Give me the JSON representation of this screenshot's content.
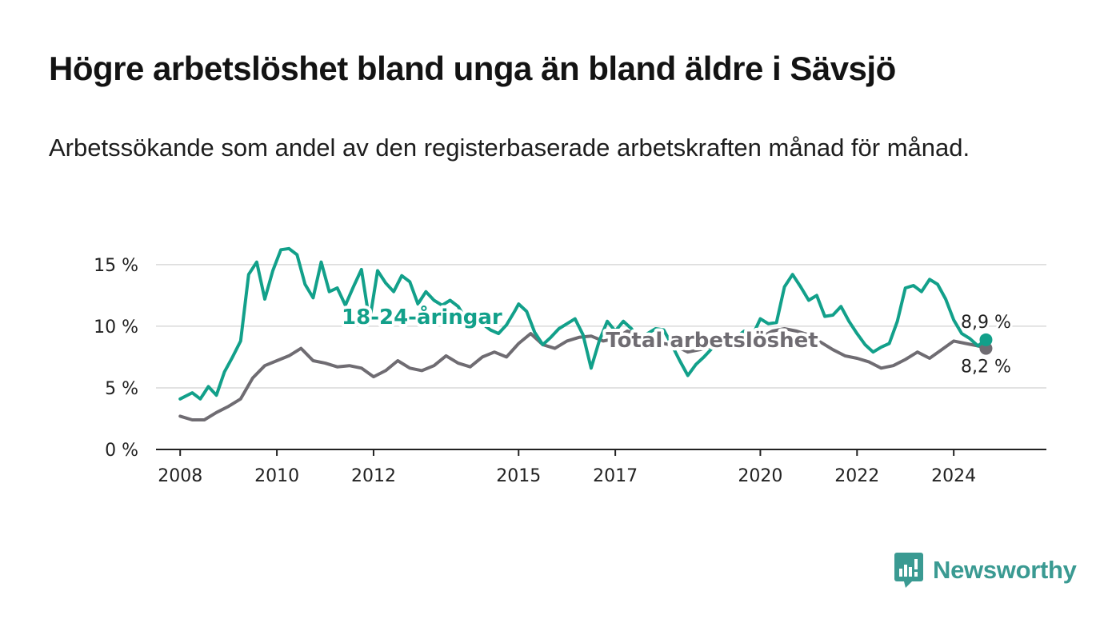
{
  "title": "Högre arbetslöshet bland unga än bland äldre i Sävsjö",
  "subtitle": "Arbetssökande som andel av den registerbaserade arbetskraften månad för månad.",
  "brand": {
    "name": "Newsworthy",
    "icon": "newsworthy-logo-icon",
    "color": "#3a9a92"
  },
  "chart_data": {
    "type": "line",
    "x_ticks": [
      "2008",
      "2010",
      "2012",
      "2015",
      "2017",
      "2020",
      "2022",
      "2024"
    ],
    "y_ticks": [
      "0 %",
      "5 %",
      "10 %",
      "15 %"
    ],
    "ylim": [
      0,
      17
    ],
    "xlim": [
      "2007-07",
      "2025-12"
    ],
    "grid": true,
    "legend": "direct labels on lines",
    "series": [
      {
        "name": "18-24-åringar",
        "color": "#12a08a",
        "end_label": "8,9 %",
        "label_position": "2013",
        "points": [
          [
            "2008-01",
            4.1
          ],
          [
            "2008-04",
            4.6
          ],
          [
            "2008-06",
            4.1
          ],
          [
            "2008-08",
            5.1
          ],
          [
            "2008-10",
            4.4
          ],
          [
            "2008-12",
            6.3
          ],
          [
            "2009-02",
            7.5
          ],
          [
            "2009-04",
            8.8
          ],
          [
            "2009-06",
            14.2
          ],
          [
            "2009-08",
            15.2
          ],
          [
            "2009-10",
            12.2
          ],
          [
            "2009-12",
            14.5
          ],
          [
            "2010-02",
            16.2
          ],
          [
            "2010-04",
            16.3
          ],
          [
            "2010-06",
            15.8
          ],
          [
            "2010-08",
            13.4
          ],
          [
            "2010-10",
            12.3
          ],
          [
            "2010-12",
            15.2
          ],
          [
            "2011-02",
            12.8
          ],
          [
            "2011-04",
            13.1
          ],
          [
            "2011-06",
            11.7
          ],
          [
            "2011-08",
            13.2
          ],
          [
            "2011-10",
            14.6
          ],
          [
            "2011-12",
            10.4
          ],
          [
            "2012-02",
            14.5
          ],
          [
            "2012-04",
            13.5
          ],
          [
            "2012-06",
            12.8
          ],
          [
            "2012-08",
            14.1
          ],
          [
            "2012-10",
            13.6
          ],
          [
            "2012-12",
            11.8
          ],
          [
            "2013-02",
            12.8
          ],
          [
            "2013-04",
            12.1
          ],
          [
            "2013-06",
            11.7
          ],
          [
            "2013-08",
            12.1
          ],
          [
            "2013-10",
            11.6
          ],
          [
            "2013-12",
            10.5
          ],
          [
            "2014-02",
            10.7
          ],
          [
            "2014-04",
            10.2
          ],
          [
            "2014-06",
            9.7
          ],
          [
            "2014-08",
            9.4
          ],
          [
            "2014-10",
            10.1
          ],
          [
            "2014-12",
            11.2
          ],
          [
            "2015-01",
            11.8
          ],
          [
            "2015-03",
            11.2
          ],
          [
            "2015-05",
            9.5
          ],
          [
            "2015-07",
            8.5
          ],
          [
            "2015-09",
            9.1
          ],
          [
            "2015-11",
            9.8
          ],
          [
            "2016-01",
            10.2
          ],
          [
            "2016-03",
            10.6
          ],
          [
            "2016-05",
            9.3
          ],
          [
            "2016-07",
            6.6
          ],
          [
            "2016-09",
            8.8
          ],
          [
            "2016-11",
            10.4
          ],
          [
            "2017-01",
            9.6
          ],
          [
            "2017-03",
            10.4
          ],
          [
            "2017-05",
            9.8
          ],
          [
            "2017-07",
            8.9
          ],
          [
            "2017-09",
            9.4
          ],
          [
            "2017-11",
            9.8
          ],
          [
            "2018-01",
            9.7
          ],
          [
            "2018-03",
            8.5
          ],
          [
            "2018-05",
            7.2
          ],
          [
            "2018-07",
            6.0
          ],
          [
            "2018-09",
            6.9
          ],
          [
            "2018-11",
            7.5
          ],
          [
            "2019-01",
            8.2
          ],
          [
            "2019-03",
            9.0
          ],
          [
            "2019-05",
            8.6
          ],
          [
            "2019-07",
            9.1
          ],
          [
            "2019-09",
            9.6
          ],
          [
            "2019-11",
            9.2
          ],
          [
            "2020-01",
            10.6
          ],
          [
            "2020-03",
            10.2
          ],
          [
            "2020-05",
            10.3
          ],
          [
            "2020-07",
            13.2
          ],
          [
            "2020-09",
            14.2
          ],
          [
            "2020-11",
            13.2
          ],
          [
            "2021-01",
            12.1
          ],
          [
            "2021-03",
            12.5
          ],
          [
            "2021-05",
            10.8
          ],
          [
            "2021-07",
            10.9
          ],
          [
            "2021-09",
            11.6
          ],
          [
            "2021-11",
            10.4
          ],
          [
            "2022-01",
            9.4
          ],
          [
            "2022-03",
            8.5
          ],
          [
            "2022-05",
            7.9
          ],
          [
            "2022-07",
            8.3
          ],
          [
            "2022-09",
            8.6
          ],
          [
            "2022-11",
            10.4
          ],
          [
            "2023-01",
            13.1
          ],
          [
            "2023-03",
            13.3
          ],
          [
            "2023-05",
            12.8
          ],
          [
            "2023-07",
            13.8
          ],
          [
            "2023-09",
            13.4
          ],
          [
            "2023-11",
            12.2
          ],
          [
            "2024-01",
            10.5
          ],
          [
            "2024-03",
            9.4
          ],
          [
            "2024-05",
            9.0
          ],
          [
            "2024-07",
            8.4
          ],
          [
            "2024-09",
            8.9
          ]
        ]
      },
      {
        "name": "Total arbetslöshet",
        "color": "#6f6c72",
        "end_label": "8,2 %",
        "label_position": "2019",
        "points": [
          [
            "2008-01",
            2.7
          ],
          [
            "2008-04",
            2.4
          ],
          [
            "2008-07",
            2.4
          ],
          [
            "2008-10",
            3.0
          ],
          [
            "2009-01",
            3.5
          ],
          [
            "2009-04",
            4.1
          ],
          [
            "2009-07",
            5.8
          ],
          [
            "2009-10",
            6.8
          ],
          [
            "2010-01",
            7.2
          ],
          [
            "2010-04",
            7.6
          ],
          [
            "2010-07",
            8.2
          ],
          [
            "2010-10",
            7.2
          ],
          [
            "2011-01",
            7.0
          ],
          [
            "2011-04",
            6.7
          ],
          [
            "2011-07",
            6.8
          ],
          [
            "2011-10",
            6.6
          ],
          [
            "2012-01",
            5.9
          ],
          [
            "2012-04",
            6.4
          ],
          [
            "2012-07",
            7.2
          ],
          [
            "2012-10",
            6.6
          ],
          [
            "2013-01",
            6.4
          ],
          [
            "2013-04",
            6.8
          ],
          [
            "2013-07",
            7.6
          ],
          [
            "2013-10",
            7.0
          ],
          [
            "2014-01",
            6.7
          ],
          [
            "2014-04",
            7.5
          ],
          [
            "2014-07",
            7.9
          ],
          [
            "2014-10",
            7.5
          ],
          [
            "2015-01",
            8.6
          ],
          [
            "2015-04",
            9.4
          ],
          [
            "2015-07",
            8.5
          ],
          [
            "2015-10",
            8.2
          ],
          [
            "2016-01",
            8.8
          ],
          [
            "2016-04",
            9.1
          ],
          [
            "2016-07",
            9.2
          ],
          [
            "2016-10",
            8.8
          ],
          [
            "2017-01",
            9.0
          ],
          [
            "2017-04",
            9.6
          ],
          [
            "2017-07",
            9.3
          ],
          [
            "2017-10",
            8.9
          ],
          [
            "2018-01",
            8.6
          ],
          [
            "2018-04",
            8.4
          ],
          [
            "2018-07",
            7.9
          ],
          [
            "2018-10",
            8.1
          ],
          [
            "2019-01",
            8.4
          ],
          [
            "2019-04",
            8.7
          ],
          [
            "2019-07",
            9.0
          ],
          [
            "2019-10",
            9.2
          ],
          [
            "2020-01",
            9.1
          ],
          [
            "2020-04",
            9.6
          ],
          [
            "2020-07",
            9.8
          ],
          [
            "2020-10",
            9.6
          ],
          [
            "2021-01",
            9.3
          ],
          [
            "2021-04",
            8.7
          ],
          [
            "2021-07",
            8.1
          ],
          [
            "2021-10",
            7.6
          ],
          [
            "2022-01",
            7.4
          ],
          [
            "2022-04",
            7.1
          ],
          [
            "2022-07",
            6.6
          ],
          [
            "2022-10",
            6.8
          ],
          [
            "2023-01",
            7.3
          ],
          [
            "2023-04",
            7.9
          ],
          [
            "2023-07",
            7.4
          ],
          [
            "2023-10",
            8.1
          ],
          [
            "2024-01",
            8.8
          ],
          [
            "2024-04",
            8.6
          ],
          [
            "2024-07",
            8.4
          ],
          [
            "2024-09",
            8.2
          ]
        ]
      }
    ]
  }
}
